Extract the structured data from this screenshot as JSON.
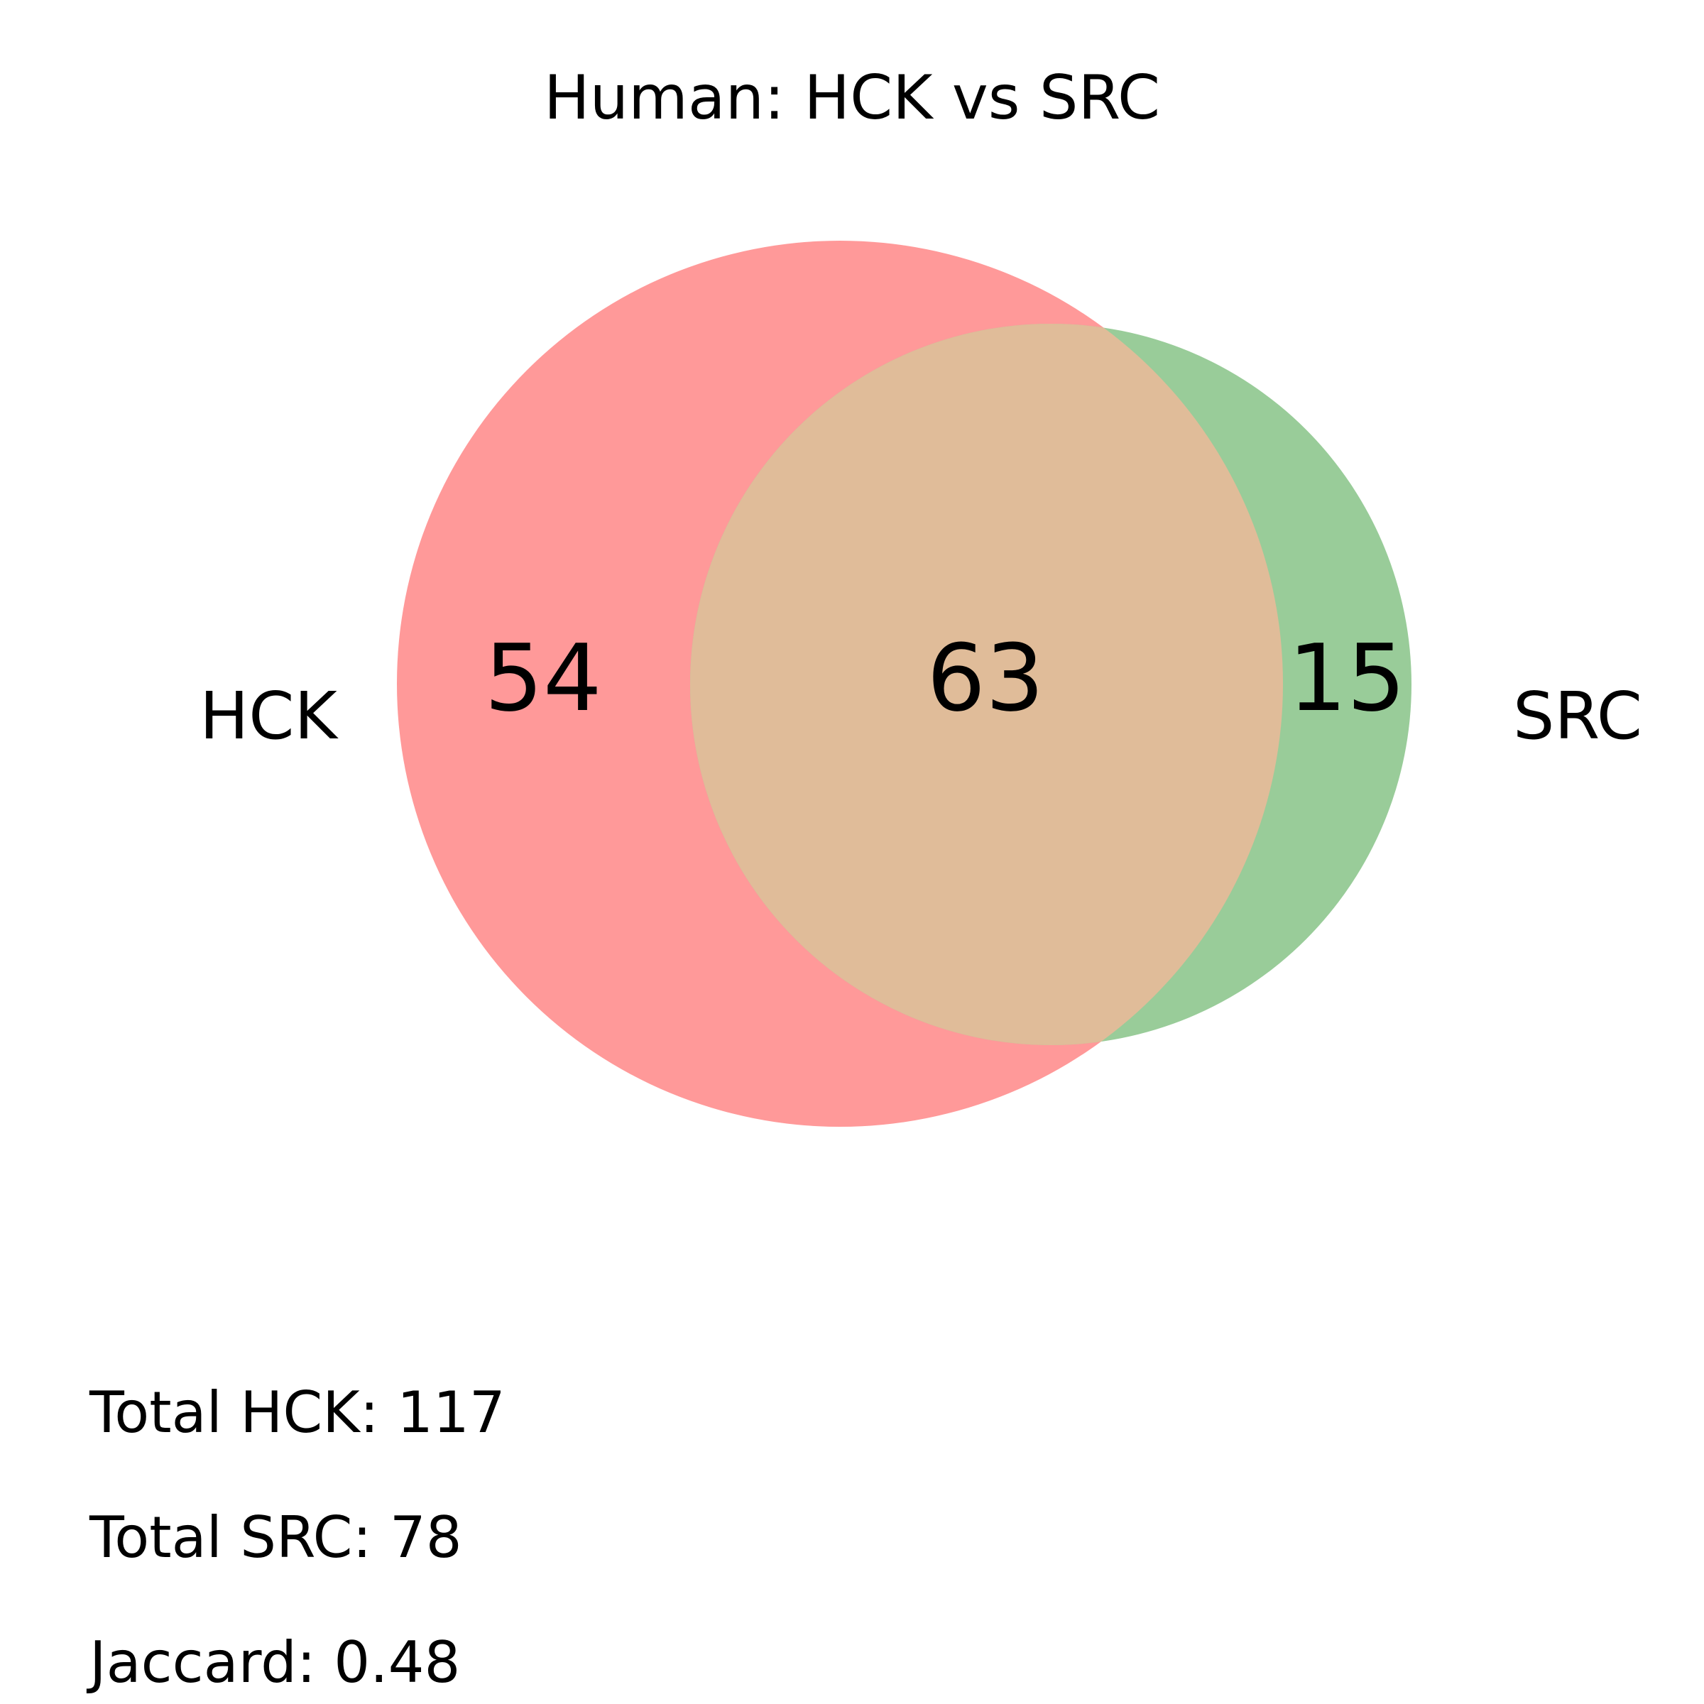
{
  "title": "Human: HCK vs SRC",
  "sets": [
    {
      "name": "HCK",
      "color": "#ff9999"
    },
    {
      "name": "SRC",
      "color": "#99cc99"
    }
  ],
  "overlap_color": "#e0bc99",
  "regions": {
    "hck_only": "54",
    "intersection": "63",
    "src_only": "15"
  },
  "stats": {
    "total_hck": "Total HCK: 117",
    "total_src": "Total SRC: 78",
    "jaccard": "Jaccard: 0.48"
  }
}
